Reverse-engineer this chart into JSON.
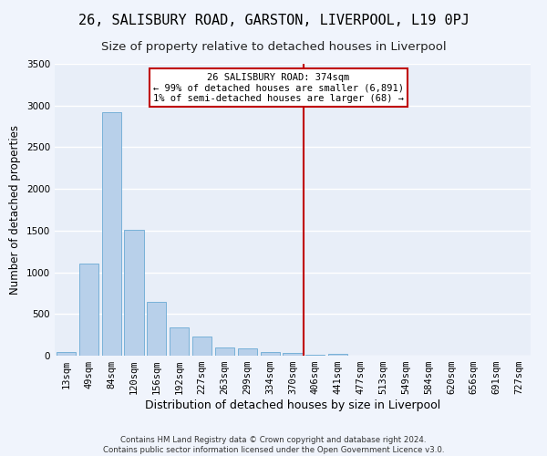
{
  "title": "26, SALISBURY ROAD, GARSTON, LIVERPOOL, L19 0PJ",
  "subtitle": "Size of property relative to detached houses in Liverpool",
  "xlabel": "Distribution of detached houses by size in Liverpool",
  "ylabel": "Number of detached properties",
  "bar_labels": [
    "13sqm",
    "49sqm",
    "84sqm",
    "120sqm",
    "156sqm",
    "192sqm",
    "227sqm",
    "263sqm",
    "299sqm",
    "334sqm",
    "370sqm",
    "406sqm",
    "441sqm",
    "477sqm",
    "513sqm",
    "549sqm",
    "584sqm",
    "620sqm",
    "656sqm",
    "691sqm",
    "727sqm"
  ],
  "bar_values": [
    45,
    1100,
    2920,
    1510,
    640,
    340,
    225,
    100,
    90,
    40,
    30,
    10,
    18,
    5,
    0,
    0,
    0,
    0,
    0,
    0,
    0
  ],
  "bar_color": "#b8d0ea",
  "bar_edge_color": "#6aaad4",
  "vline_x_index": 10.5,
  "vline_color": "#c00000",
  "annotation_text": "26 SALISBURY ROAD: 374sqm\n← 99% of detached houses are smaller (6,891)\n1% of semi-detached houses are larger (68) →",
  "ylim": [
    0,
    3500
  ],
  "yticks": [
    0,
    500,
    1000,
    1500,
    2000,
    2500,
    3000,
    3500
  ],
  "plot_bg_color": "#e8eef8",
  "fig_bg_color": "#f0f4fc",
  "grid_color": "#ffffff",
  "footer_text": "Contains HM Land Registry data © Crown copyright and database right 2024.\nContains public sector information licensed under the Open Government Licence v3.0.",
  "title_fontsize": 11,
  "subtitle_fontsize": 9.5,
  "xlabel_fontsize": 9,
  "ylabel_fontsize": 8.5,
  "tick_fontsize": 7.5
}
